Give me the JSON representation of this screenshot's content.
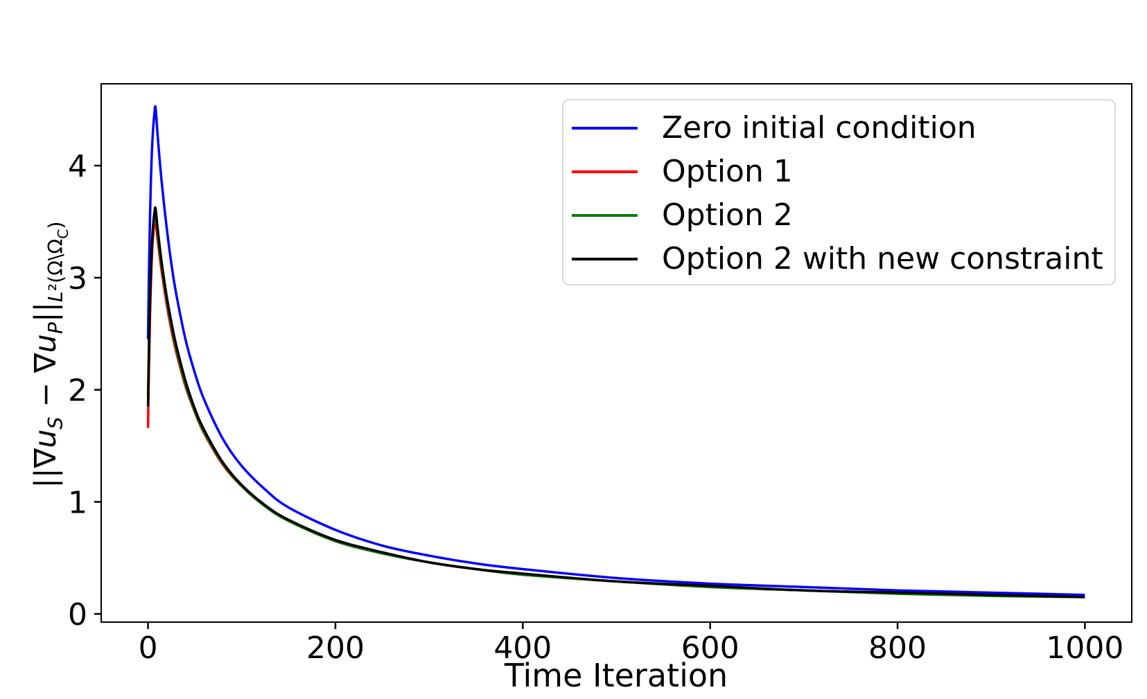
{
  "figure": {
    "background": "#ffffff"
  },
  "chart_data": {
    "type": "line",
    "title": "",
    "xlabel": "Time Iteration",
    "ylabel": "||∇u_S − ∇u_P||_{L²(Ω\\Ω_C)}",
    "ylabel_parts": [
      {
        "t": "||∇",
        "c": "n"
      },
      {
        "t": "u",
        "c": "i"
      },
      {
        "t": "S",
        "c": "sb i"
      },
      {
        "t": " − ∇",
        "c": "n"
      },
      {
        "t": "u",
        "c": "i"
      },
      {
        "t": "P",
        "c": "sb i"
      },
      {
        "t": "||",
        "c": "n"
      },
      {
        "t": "L",
        "c": "sb i"
      },
      {
        "t": "²(Ω\\Ω",
        "c": "sb"
      },
      {
        "t": "C",
        "c": "sbb"
      },
      {
        "t": ")",
        "c": "sb"
      }
    ],
    "xlim": [
      -50,
      1050
    ],
    "ylim": [
      -0.073,
      4.73
    ],
    "x_ticks": [
      0,
      200,
      400,
      600,
      800,
      1000
    ],
    "y_ticks": [
      0,
      1,
      2,
      3,
      4
    ],
    "grid": false,
    "legend_position": "upper right",
    "axis_color": "#000000",
    "line_width": 3.5,
    "x": [
      0,
      1,
      2,
      3,
      4,
      5,
      6,
      7,
      8,
      10,
      12,
      15,
      20,
      25,
      30,
      40,
      50,
      60,
      80,
      100,
      125,
      150,
      200,
      250,
      300,
      350,
      400,
      500,
      600,
      700,
      800,
      900,
      1000
    ],
    "series": [
      {
        "name": "Zero initial condition",
        "color": "#0000ff",
        "values": [
          2.45,
          3.05,
          3.5,
          3.85,
          4.1,
          4.27,
          4.39,
          4.48,
          4.52,
          4.3,
          4.09,
          3.82,
          3.44,
          3.12,
          2.86,
          2.45,
          2.15,
          1.91,
          1.56,
          1.32,
          1.11,
          0.95,
          0.75,
          0.61,
          0.52,
          0.45,
          0.4,
          0.32,
          0.27,
          0.24,
          0.21,
          0.19,
          0.17
        ]
      },
      {
        "name": "Option 1",
        "color": "#ff0000",
        "values": [
          1.66,
          2.2,
          2.62,
          2.93,
          3.16,
          3.32,
          3.42,
          3.48,
          3.51,
          3.36,
          3.22,
          3.03,
          2.76,
          2.53,
          2.34,
          2.03,
          1.8,
          1.61,
          1.33,
          1.14,
          0.96,
          0.83,
          0.65,
          0.54,
          0.46,
          0.4,
          0.35,
          0.29,
          0.24,
          0.21,
          0.185,
          0.165,
          0.15
        ]
      },
      {
        "name": "Option 2",
        "color": "#008000",
        "values": [
          1.95,
          2.42,
          2.8,
          3.07,
          3.27,
          3.4,
          3.49,
          3.55,
          3.58,
          3.42,
          3.27,
          3.08,
          2.8,
          2.57,
          2.37,
          2.05,
          1.81,
          1.62,
          1.34,
          1.14,
          0.96,
          0.83,
          0.65,
          0.54,
          0.46,
          0.4,
          0.35,
          0.29,
          0.24,
          0.21,
          0.18,
          0.16,
          0.15
        ]
      },
      {
        "name": "Option 2 with new constraint",
        "color": "#000000",
        "values": [
          1.85,
          2.35,
          2.75,
          3.05,
          3.27,
          3.42,
          3.52,
          3.59,
          3.62,
          3.46,
          3.31,
          3.11,
          2.83,
          2.6,
          2.4,
          2.08,
          1.83,
          1.64,
          1.35,
          1.15,
          0.97,
          0.84,
          0.66,
          0.55,
          0.46,
          0.4,
          0.36,
          0.29,
          0.25,
          0.21,
          0.19,
          0.17,
          0.15
        ]
      }
    ]
  }
}
